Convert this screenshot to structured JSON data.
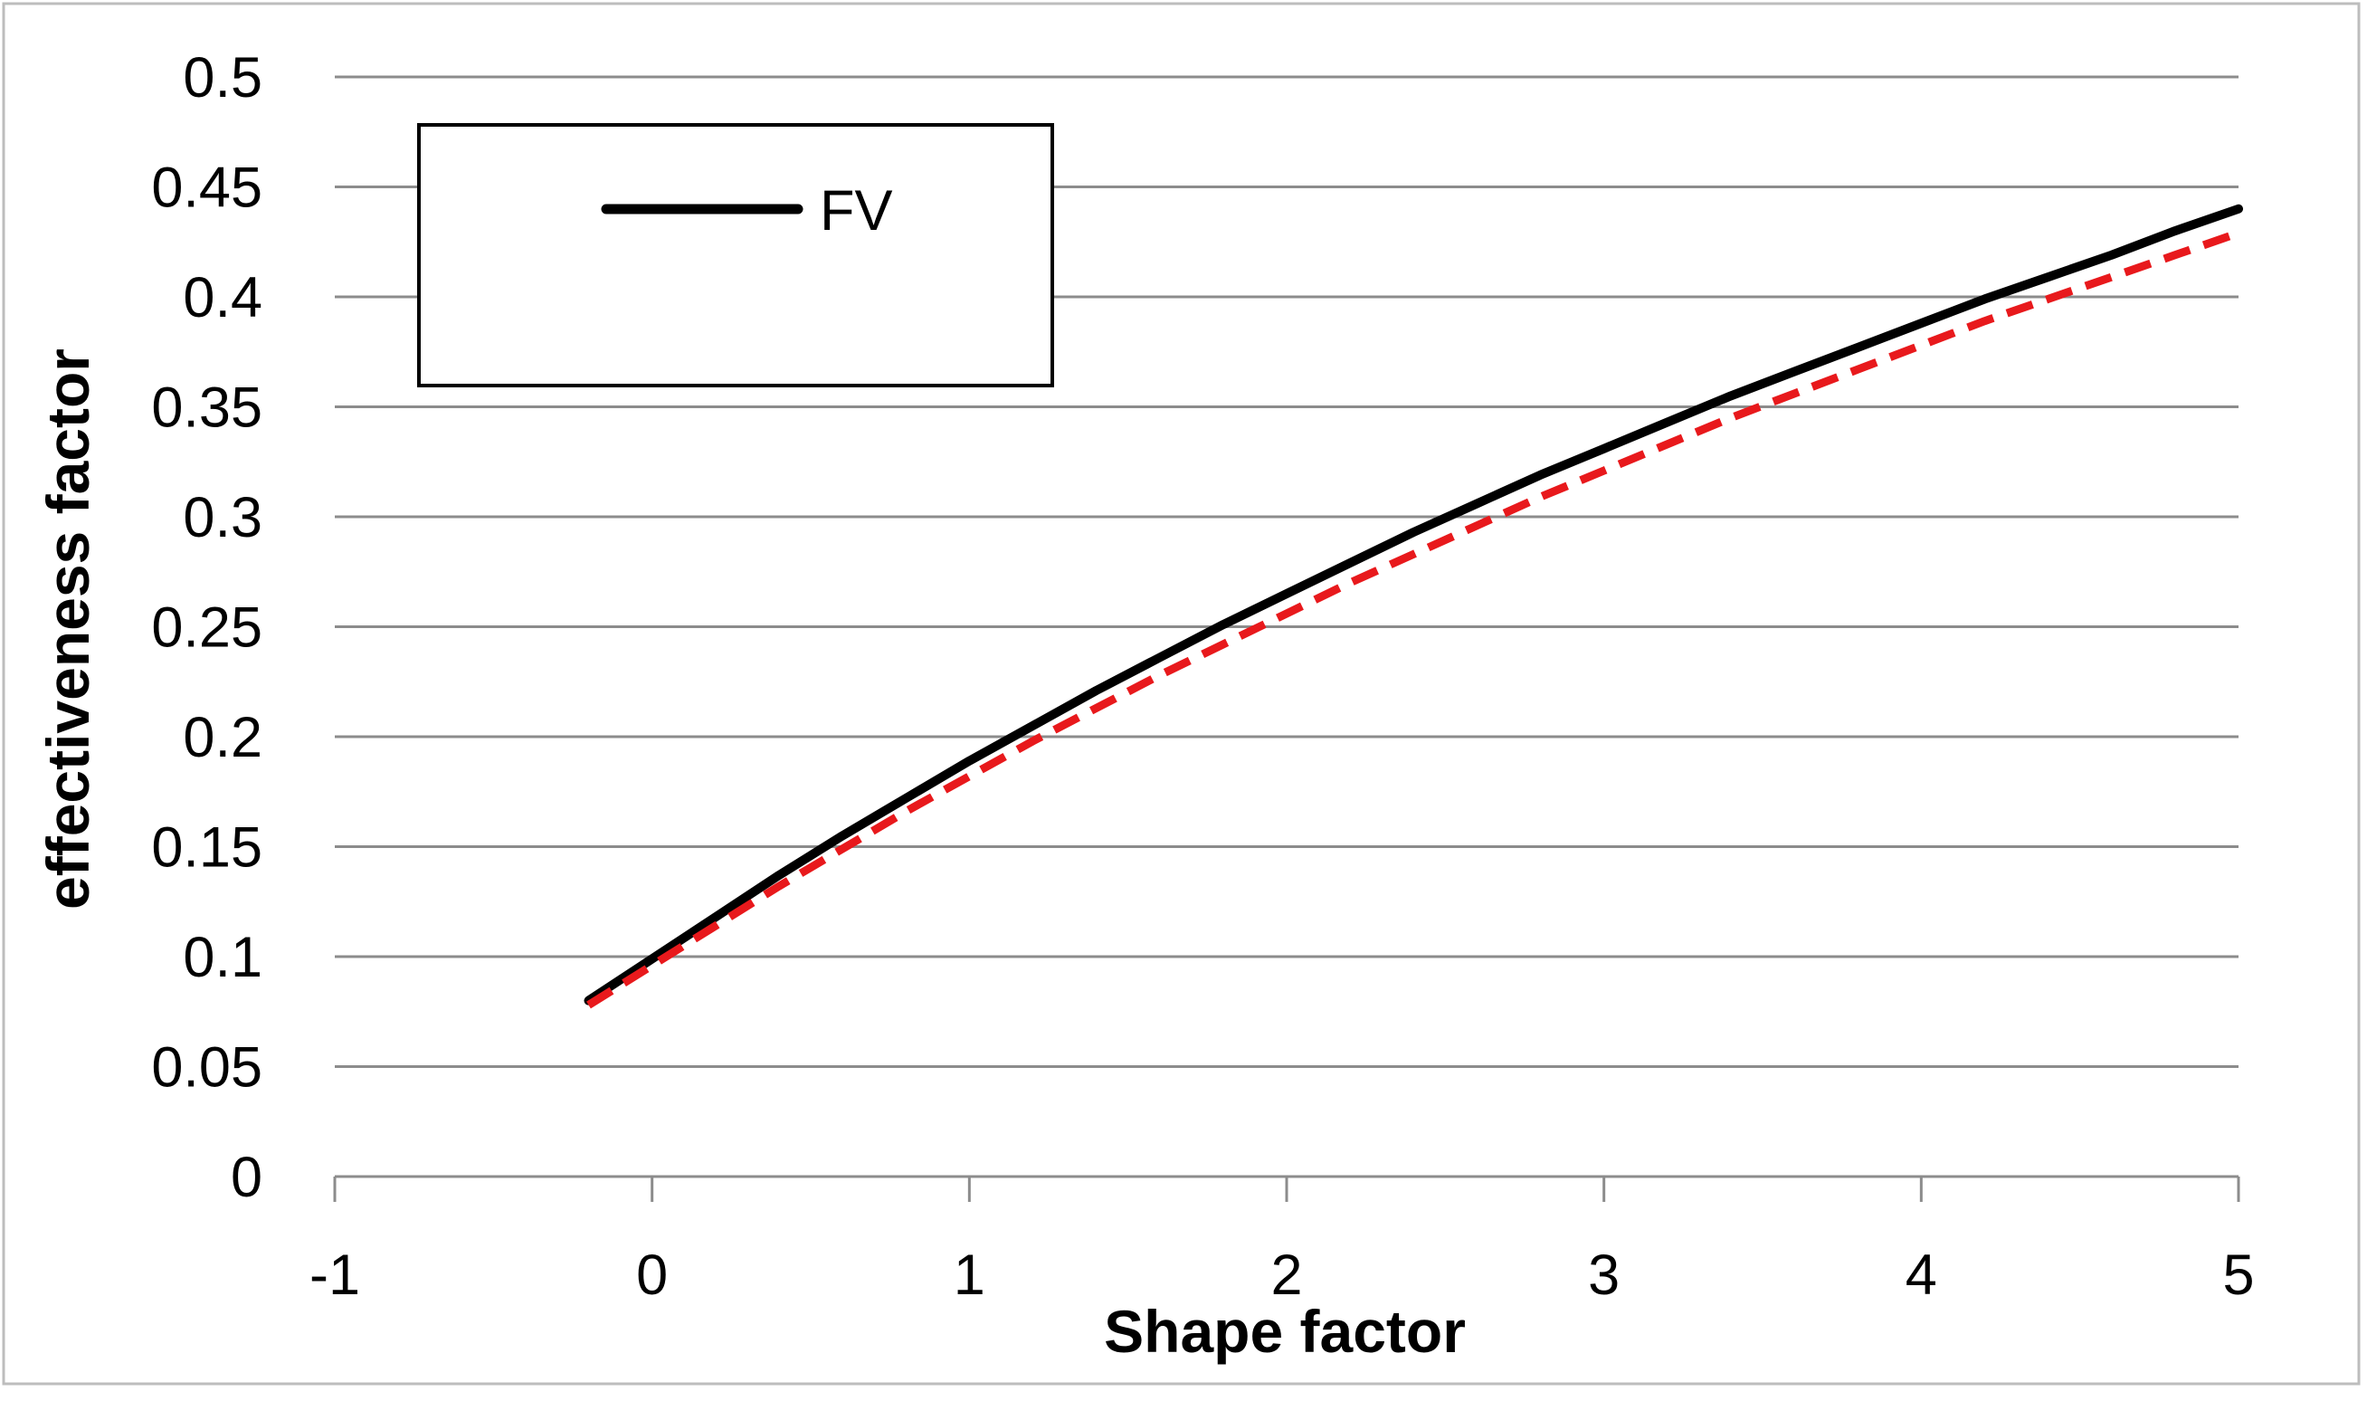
{
  "chart_data": {
    "type": "line",
    "xlabel": "Shape factor",
    "ylabel": "effectiveness factor",
    "xlim": [
      -1,
      5
    ],
    "ylim": [
      0,
      0.5
    ],
    "x_ticks": [
      -1,
      0,
      1,
      2,
      3,
      4,
      5
    ],
    "x_tick_labels": [
      "-1",
      "0",
      "1",
      "2",
      "3",
      "4",
      "5"
    ],
    "y_ticks": [
      0,
      0.05,
      0.1,
      0.15,
      0.2,
      0.25,
      0.3,
      0.35,
      0.4,
      0.45,
      0.5
    ],
    "y_tick_labels": [
      "0",
      "0.05",
      "0.1",
      "0.15",
      "0.2",
      "0.25",
      "0.3",
      "0.35",
      "0.4",
      "0.45",
      "0.5"
    ],
    "grid": "horizontal",
    "legend_position": "top-left",
    "series": [
      {
        "name": "FV",
        "style": "solid",
        "color": "#000000",
        "x": [
          -0.2,
          0,
          0.2,
          0.4,
          0.6,
          0.8,
          1.0,
          1.2,
          1.4,
          1.6,
          1.8,
          2.0,
          2.2,
          2.4,
          2.6,
          2.8,
          3.0,
          3.2,
          3.4,
          3.6,
          3.8,
          4.0,
          4.2,
          4.4,
          4.6,
          4.8,
          5.0
        ],
        "y": [
          0.08,
          0.099,
          0.118,
          0.137,
          0.155,
          0.172,
          0.189,
          0.205,
          0.221,
          0.236,
          0.251,
          0.265,
          0.279,
          0.293,
          0.306,
          0.319,
          0.331,
          0.343,
          0.355,
          0.366,
          0.377,
          0.388,
          0.399,
          0.409,
          0.419,
          0.43,
          0.44
        ]
      },
      {
        "style": "dashed",
        "color": "#e8191c",
        "x": [
          -0.2,
          0,
          0.2,
          0.4,
          0.6,
          0.8,
          1.0,
          1.2,
          1.4,
          1.6,
          1.8,
          2.0,
          2.2,
          2.4,
          2.6,
          2.8,
          3.0,
          3.2,
          3.4,
          3.6,
          3.8,
          4.0,
          4.2,
          4.4,
          4.6,
          4.8,
          5.0
        ],
        "y": [
          0.078,
          0.096,
          0.114,
          0.132,
          0.149,
          0.166,
          0.182,
          0.198,
          0.213,
          0.228,
          0.242,
          0.256,
          0.27,
          0.283,
          0.296,
          0.309,
          0.321,
          0.333,
          0.345,
          0.356,
          0.367,
          0.378,
          0.389,
          0.399,
          0.409,
          0.419,
          0.429
        ]
      }
    ]
  }
}
